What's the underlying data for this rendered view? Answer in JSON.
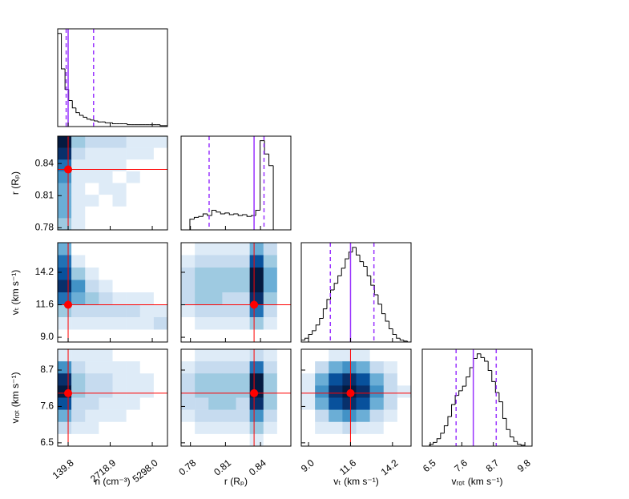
{
  "chart_data": {
    "type": "corner",
    "quantile_color": "#9933ff",
    "truth_color": "#ff0000",
    "density_colors": [
      "#ffffff",
      "#deebf7",
      "#c6dbef",
      "#9ecae1",
      "#6baed6",
      "#4292c6",
      "#2171b5",
      "#08519c",
      "#08306b",
      "#041a40"
    ],
    "variables": [
      {
        "label": "n (cm⁻³)",
        "xlim": [
          -500,
          6230
        ],
        "xticks": [
          139.8,
          2718.9,
          {
            "value": 5298,
            "label": "5298.0"
          }
        ],
        "quantiles": [
          20,
          139.8,
          1700
        ],
        "hist": [
          100,
          62,
          40,
          28,
          20,
          15,
          12,
          10,
          8,
          7,
          6,
          5,
          5,
          4,
          4,
          3,
          3,
          3,
          3,
          2,
          2,
          2,
          2,
          2,
          2,
          2,
          2,
          2,
          1,
          1
        ]
      },
      {
        "label": "r (Rₚ)",
        "xlim": [
          0.772,
          0.866
        ],
        "xticks": [
          0.78,
          0.81,
          0.84
        ],
        "ylim": [
          0.778,
          0.8656
        ],
        "yticks": [
          0.78,
          0.81,
          0.84
        ],
        "quantiles": [
          0.796,
          0.8345,
          0.843
        ],
        "hist": [
          0,
          0,
          12,
          14,
          15,
          18,
          16,
          22,
          20,
          18,
          19,
          17,
          18,
          16,
          17,
          15,
          16,
          22,
          100,
          85,
          72,
          0,
          0,
          0,
          0
        ]
      },
      {
        "label": "vₜ (km s⁻¹)",
        "xlim": [
          8.55,
          15.35
        ],
        "xticks": [
          {
            "value": 9,
            "label": "9.0"
          },
          11.6,
          14.2
        ],
        "ylim": [
          8.62,
          16.57
        ],
        "yticks": [
          {
            "value": 9,
            "label": "9.0"
          },
          11.6,
          14.2
        ],
        "quantiles": [
          10.35,
          11.6,
          13.05
        ],
        "hist": [
          2,
          4,
          8,
          12,
          18,
          25,
          35,
          45,
          55,
          62,
          70,
          78,
          88,
          95,
          100,
          92,
          85,
          80,
          70,
          60,
          50,
          40,
          30,
          22,
          14,
          8,
          4,
          2,
          1,
          0
        ]
      },
      {
        "label": "vᵣₒₜ (km s⁻¹)",
        "xlim": [
          6.22,
          10.05
        ],
        "xticks": [
          6.5,
          7.6,
          8.7,
          9.8
        ],
        "ylim": [
          6.4,
          9.33
        ],
        "yticks": [
          6.5,
          7.6,
          8.7
        ],
        "quantiles": [
          7.4,
          8.0,
          8.8
        ],
        "hist": [
          0,
          0,
          2,
          4,
          8,
          14,
          22,
          32,
          45,
          55,
          60,
          65,
          75,
          85,
          95,
          100,
          96,
          92,
          82,
          70,
          58,
          48,
          30,
          18,
          10,
          5,
          2,
          1,
          0,
          0
        ]
      }
    ],
    "density": [
      [
        [
          9,
          3,
          2,
          2,
          2,
          1,
          1,
          1
        ],
        [
          8,
          2,
          1,
          1,
          1,
          1,
          1,
          0
        ],
        [
          6,
          1,
          1,
          1,
          1,
          0,
          0,
          0
        ],
        [
          5,
          1,
          1,
          1,
          0,
          1,
          0,
          0
        ],
        [
          4,
          1,
          0,
          1,
          1,
          0,
          0,
          0
        ],
        [
          4,
          1,
          1,
          0,
          1,
          0,
          0,
          0
        ],
        [
          4,
          1,
          0,
          0,
          0,
          0,
          0,
          0
        ],
        [
          3,
          1,
          0,
          0,
          0,
          0,
          0,
          0
        ]
      ],
      [
        [
          4,
          0,
          0,
          0,
          0,
          0,
          0,
          0
        ],
        [
          6,
          1,
          0,
          0,
          0,
          0,
          0,
          0
        ],
        [
          7,
          3,
          1,
          0,
          0,
          0,
          0,
          0
        ],
        [
          8,
          5,
          2,
          1,
          0,
          0,
          0,
          0
        ],
        [
          6,
          4,
          3,
          2,
          1,
          1,
          1,
          0
        ],
        [
          3,
          2,
          2,
          2,
          2,
          2,
          1,
          1
        ],
        [
          1,
          1,
          1,
          1,
          1,
          1,
          1,
          2
        ],
        [
          0,
          0,
          0,
          0,
          0,
          0,
          0,
          0
        ]
      ],
      [
        [
          0,
          1,
          1,
          1,
          1,
          4,
          2,
          0
        ],
        [
          1,
          2,
          2,
          2,
          2,
          7,
          3,
          0
        ],
        [
          2,
          3,
          3,
          3,
          3,
          9,
          4,
          0
        ],
        [
          2,
          3,
          3,
          3,
          3,
          9,
          4,
          0
        ],
        [
          2,
          3,
          3,
          2,
          2,
          8,
          3,
          0
        ],
        [
          1,
          2,
          2,
          2,
          2,
          6,
          2,
          0
        ],
        [
          0,
          1,
          1,
          1,
          1,
          3,
          1,
          0
        ],
        [
          0,
          0,
          0,
          0,
          0,
          0,
          0,
          0
        ]
      ],
      [
        [
          1,
          1,
          1,
          1,
          0,
          0,
          0,
          0
        ],
        [
          5,
          2,
          1,
          1,
          1,
          1,
          0,
          0
        ],
        [
          8,
          3,
          2,
          2,
          1,
          1,
          1,
          0
        ],
        [
          9,
          3,
          2,
          2,
          1,
          1,
          1,
          0
        ],
        [
          7,
          2,
          2,
          1,
          1,
          1,
          0,
          0
        ],
        [
          4,
          2,
          1,
          1,
          1,
          0,
          0,
          0
        ],
        [
          2,
          1,
          1,
          0,
          0,
          0,
          0,
          0
        ],
        [
          0,
          0,
          0,
          0,
          0,
          0,
          0,
          0
        ]
      ],
      [
        [
          0,
          1,
          1,
          1,
          1,
          2,
          1,
          0
        ],
        [
          1,
          2,
          2,
          2,
          2,
          6,
          2,
          0
        ],
        [
          2,
          3,
          3,
          3,
          3,
          9,
          3,
          0
        ],
        [
          2,
          3,
          3,
          3,
          3,
          9,
          3,
          0
        ],
        [
          2,
          2,
          3,
          3,
          2,
          8,
          3,
          0
        ],
        [
          1,
          2,
          2,
          2,
          2,
          5,
          2,
          0
        ],
        [
          0,
          1,
          1,
          1,
          1,
          3,
          1,
          0
        ],
        [
          0,
          0,
          0,
          0,
          0,
          1,
          0,
          0
        ]
      ],
      [
        [
          0,
          0,
          1,
          1,
          1,
          0,
          0,
          0
        ],
        [
          0,
          2,
          4,
          5,
          4,
          2,
          1,
          0
        ],
        [
          1,
          4,
          7,
          8,
          7,
          4,
          2,
          0
        ],
        [
          1,
          5,
          8,
          9,
          8,
          5,
          2,
          1
        ],
        [
          1,
          4,
          7,
          8,
          7,
          4,
          2,
          0
        ],
        [
          0,
          2,
          4,
          5,
          4,
          2,
          1,
          0
        ],
        [
          0,
          1,
          1,
          2,
          1,
          1,
          0,
          0
        ],
        [
          0,
          0,
          0,
          0,
          0,
          0,
          0,
          0
        ]
      ]
    ]
  }
}
